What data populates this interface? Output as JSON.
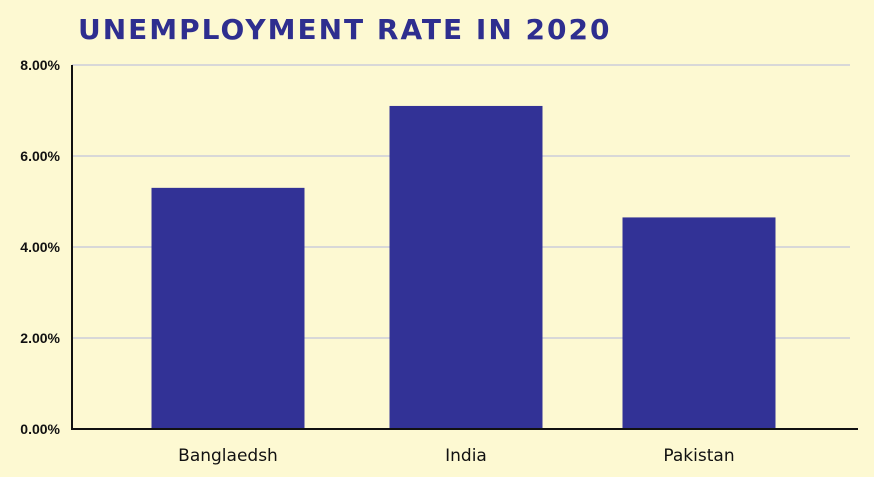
{
  "chart_data": {
    "type": "bar",
    "title": "UNEMPLOYMENT RATE IN 2020",
    "categories": [
      "Banglaedsh",
      "India",
      "Pakistan"
    ],
    "values": [
      5.3,
      7.1,
      4.65
    ],
    "ylim": [
      0,
      8
    ],
    "yticks": [
      0,
      2,
      4,
      6,
      8
    ],
    "ytick_labels": [
      "0.00%",
      "2.00%",
      "4.00%",
      "6.00%",
      "8.00%"
    ],
    "xlabel": "",
    "ylabel": "",
    "grid": true,
    "legend": "none",
    "colors": {
      "bar": "#323296",
      "title": "#2e2e8f",
      "grid": "#d8d8d8",
      "axis": "#111111",
      "background": "#fdf9d2"
    }
  }
}
